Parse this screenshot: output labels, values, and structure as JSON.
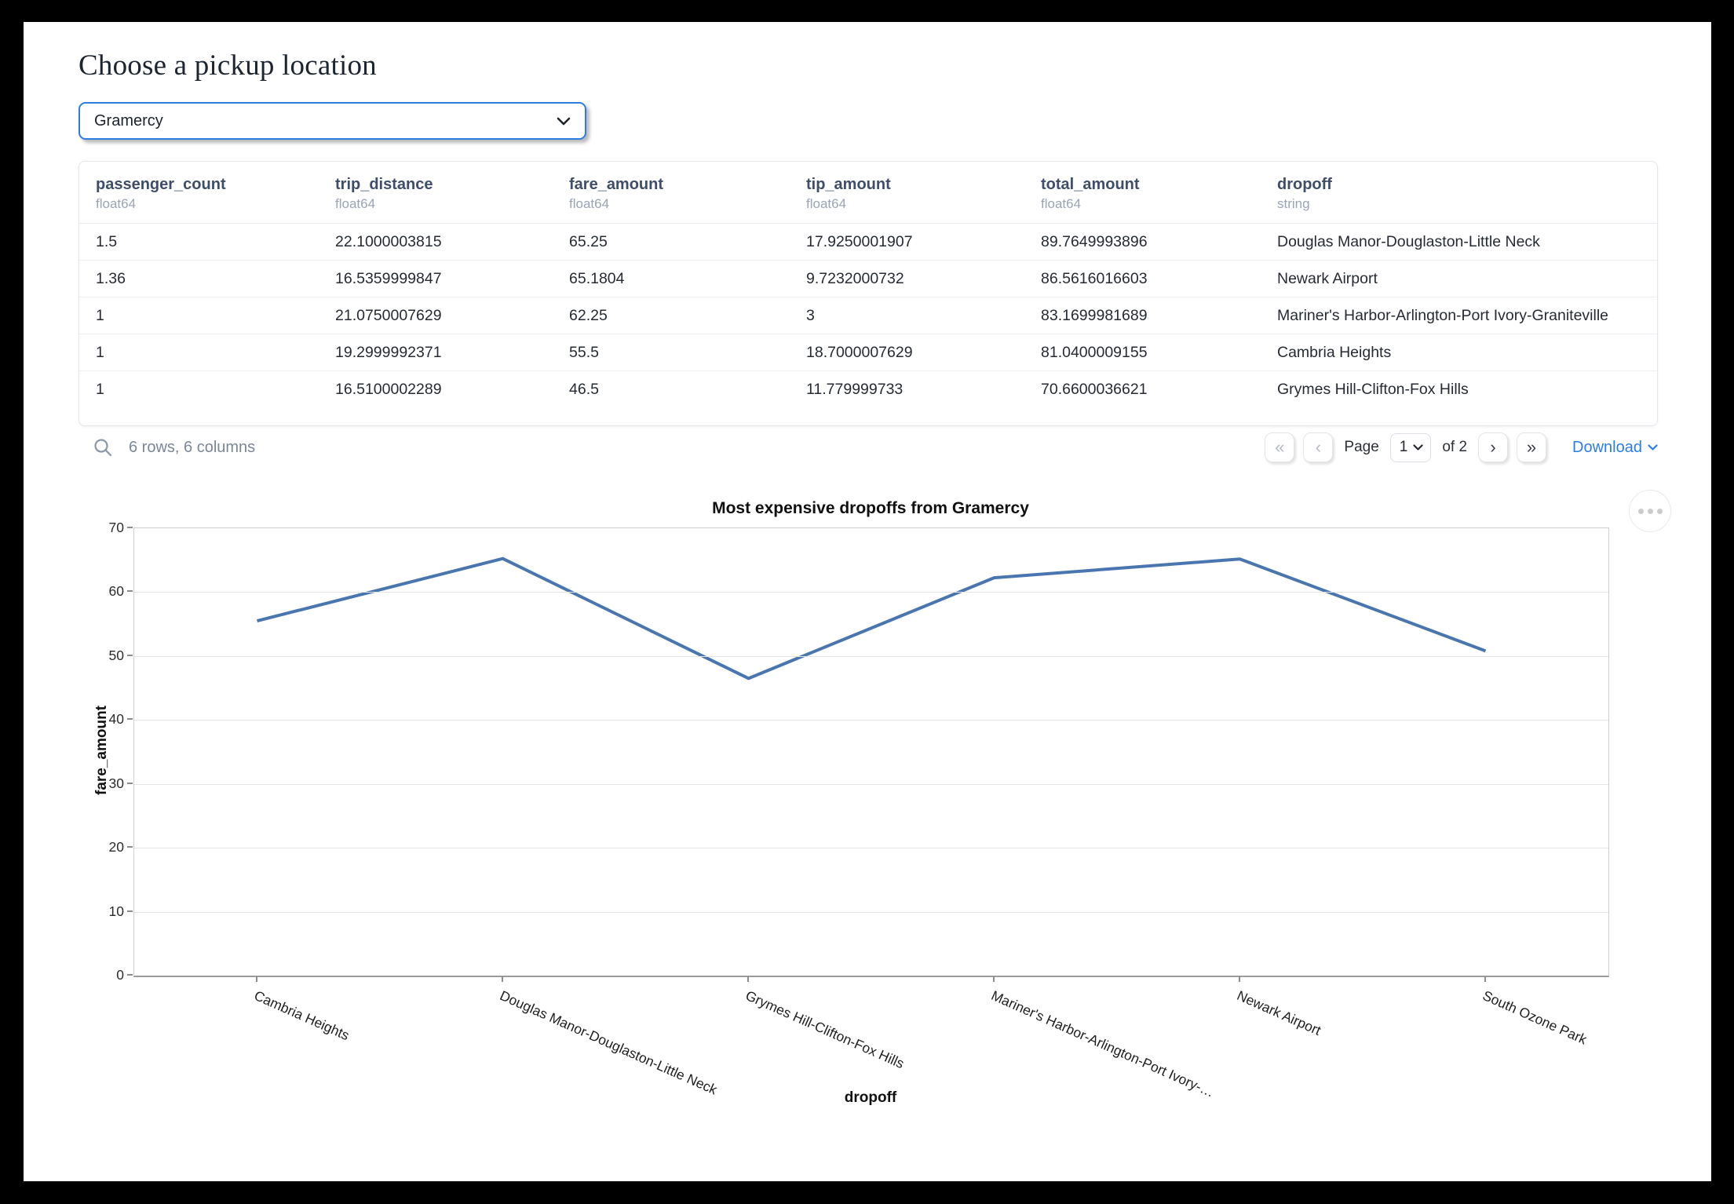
{
  "header": {
    "title": "Choose a pickup location"
  },
  "pickup_select": {
    "value": "Gramercy"
  },
  "table": {
    "columns": [
      {
        "name": "passenger_count",
        "type": "float64"
      },
      {
        "name": "trip_distance",
        "type": "float64"
      },
      {
        "name": "fare_amount",
        "type": "float64"
      },
      {
        "name": "tip_amount",
        "type": "float64"
      },
      {
        "name": "total_amount",
        "type": "float64"
      },
      {
        "name": "dropoff",
        "type": "string"
      }
    ],
    "rows": [
      [
        "1.5",
        "22.1000003815",
        "65.25",
        "17.9250001907",
        "89.7649993896",
        "Douglas Manor-Douglaston-Little Neck"
      ],
      [
        "1.36",
        "16.5359999847",
        "65.1804",
        "9.7232000732",
        "86.5616016603",
        "Newark Airport"
      ],
      [
        "1",
        "21.0750007629",
        "62.25",
        "3",
        "83.1699981689",
        "Mariner's Harbor-Arlington-Port Ivory-Graniteville"
      ],
      [
        "1",
        "19.2999992371",
        "55.5",
        "18.7000007629",
        "81.0400009155",
        "Cambria Heights"
      ],
      [
        "1",
        "16.5100002289",
        "46.5",
        "11.779999733",
        "70.6600036621",
        "Grymes Hill-Clifton-Fox Hills"
      ]
    ],
    "summary": "6 rows, 6 columns"
  },
  "pagination": {
    "first": "«",
    "prev": "‹",
    "next": "›",
    "last": "»",
    "page_label": "Page",
    "current_page": "1",
    "of_label": "of 2",
    "download_label": "Download"
  },
  "chart_data": {
    "type": "line",
    "title": "Most expensive dropoffs from Gramercy",
    "xlabel": "dropoff",
    "ylabel": "fare_amount",
    "categories": [
      "Cambria Heights",
      "Douglas Manor-Douglaston-Little Neck",
      "Grymes Hill-Clifton-Fox Hills",
      "Mariner's Harbor-Arlington-Port Ivory-…",
      "Newark Airport",
      "South Ozone Park"
    ],
    "values": [
      55.5,
      65.25,
      46.5,
      62.25,
      65.1804,
      50.8
    ],
    "ylim": [
      0,
      70
    ],
    "yticks": [
      0,
      10,
      20,
      30,
      40,
      50,
      60,
      70
    ],
    "grid": true,
    "legend": false,
    "line_color": "#4a76b0"
  },
  "colors": {
    "accent_blue": "#2e7de1",
    "link_blue": "#2b7de9",
    "line_blue": "#4a76b0",
    "header_text": "#3f4e68",
    "muted_text": "#7b8698"
  }
}
